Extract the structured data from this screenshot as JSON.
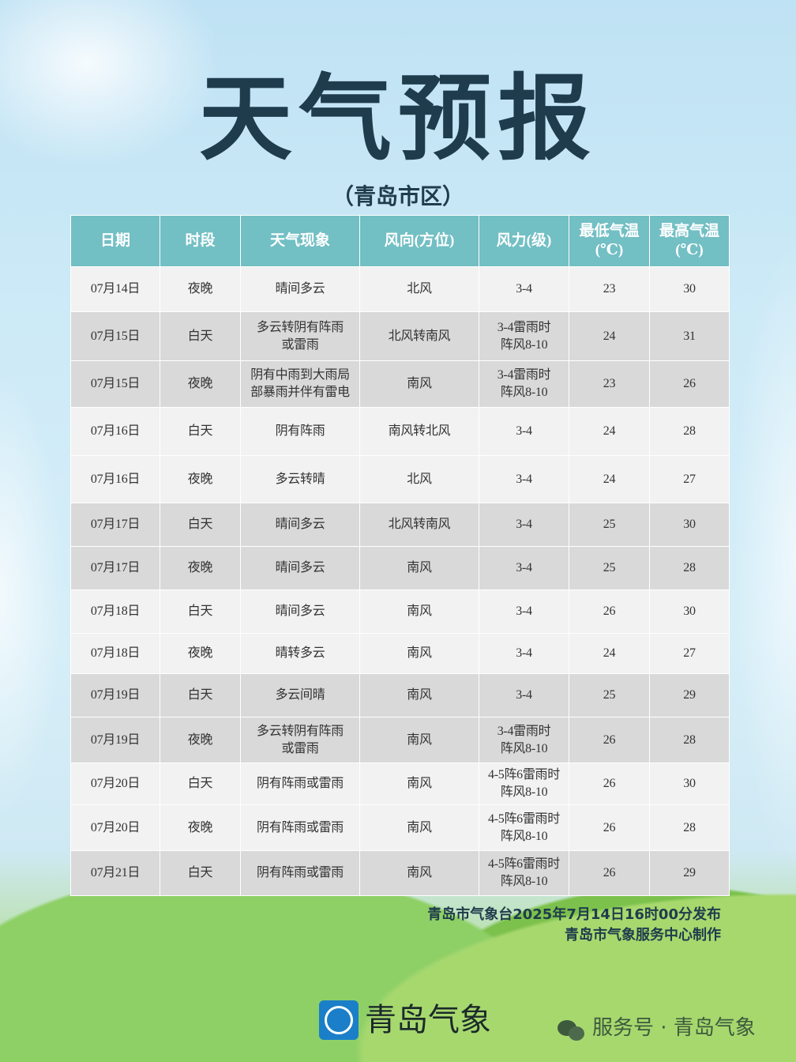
{
  "title": "天气预报",
  "subtitle": "（青岛市区）",
  "table": {
    "headers": [
      "日期",
      "时段",
      "天气现象",
      "风向(方位)",
      "风力(级)",
      "最低气温\n(℃)",
      "最高气温\n(℃)"
    ],
    "rows": [
      [
        "07月14日",
        "夜晚",
        "晴间多云",
        "北风",
        "3-4",
        "23",
        "30"
      ],
      [
        "07月15日",
        "白天",
        "多云转阴有阵雨\n或雷雨",
        "北风转南风",
        "3-4雷雨时\n阵风8-10",
        "24",
        "31"
      ],
      [
        "07月15日",
        "夜晚",
        "阴有中雨到大雨局\n部暴雨并伴有雷电",
        "南风",
        "3-4雷雨时\n阵风8-10",
        "23",
        "26"
      ],
      [
        "07月16日",
        "白天",
        "阴有阵雨",
        "南风转北风",
        "3-4",
        "24",
        "28"
      ],
      [
        "07月16日",
        "夜晚",
        "多云转晴",
        "北风",
        "3-4",
        "24",
        "27"
      ],
      [
        "07月17日",
        "白天",
        "晴间多云",
        "北风转南风",
        "3-4",
        "25",
        "30"
      ],
      [
        "07月17日",
        "夜晚",
        "晴间多云",
        "南风",
        "3-4",
        "25",
        "28"
      ],
      [
        "07月18日",
        "白天",
        "晴间多云",
        "南风",
        "3-4",
        "26",
        "30"
      ],
      [
        "07月18日",
        "夜晚",
        "晴转多云",
        "南风",
        "3-4",
        "24",
        "27"
      ],
      [
        "07月19日",
        "白天",
        "多云间晴",
        "南风",
        "3-4",
        "25",
        "29"
      ],
      [
        "07月19日",
        "夜晚",
        "多云转阴有阵雨\n或雷雨",
        "南风",
        "3-4雷雨时\n阵风8-10",
        "26",
        "28"
      ],
      [
        "07月20日",
        "白天",
        "阴有阵雨或雷雨",
        "南风",
        "4-5阵6雷雨时\n阵风8-10",
        "26",
        "30"
      ],
      [
        "07月20日",
        "夜晚",
        "阴有阵雨或雷雨",
        "南风",
        "4-5阵6雷雨时\n阵风8-10",
        "26",
        "28"
      ],
      [
        "07月21日",
        "白天",
        "阴有阵雨或雷雨",
        "南风",
        "4-5阵6雷雨时\n阵风8-10",
        "26",
        "29"
      ]
    ]
  },
  "credits": {
    "line1": "青岛市气象台2025年7月14日16时00分发布",
    "line2": "青岛市气象服务中心制作"
  },
  "footer": {
    "logo_text": "青岛气象",
    "wechat_text": "服务号 · 青岛气象"
  },
  "colors": {
    "header": "#72bfc4",
    "row_light": "#f2f2f2",
    "row_dark": "#d9d9d9",
    "title": "#1f3c4c"
  }
}
